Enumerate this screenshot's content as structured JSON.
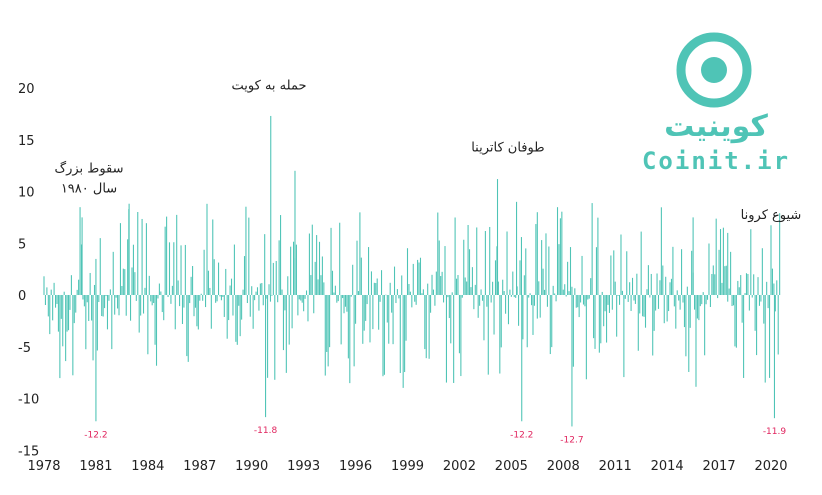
{
  "chart_data": {
    "type": "bar",
    "x_range": [
      1978,
      2020.5
    ],
    "ylim": [
      -15,
      22
    ],
    "x_ticks": [
      "1978",
      "1981",
      "1984",
      "1987",
      "1990",
      "1993",
      "1996",
      "1999",
      "2002",
      "2005",
      "2008",
      "2011",
      "2014",
      "2017",
      "2020"
    ],
    "y_ticks": [
      "20",
      "15",
      "10",
      "5",
      "0",
      "-5",
      "-10",
      "-15"
    ],
    "color": "#4fc4b6",
    "annotations": [
      {
        "lines": [
          "سقوط بزرگ",
          "سال ۱۹۸۰"
        ],
        "x": 1980.6,
        "y": 9.5
      },
      {
        "lines": [
          "حمله به کویت"
        ],
        "x": 1991.0,
        "y": 18.5
      },
      {
        "lines": [
          "طوفان کاترینا"
        ],
        "x": 2004.8,
        "y": 12.5
      },
      {
        "lines": [
          "شیوع کرونا"
        ],
        "x": 2020.0,
        "y": 6.0
      }
    ],
    "min_labels": [
      {
        "text": "-12.2",
        "x": 1981.0,
        "y": -12.2
      },
      {
        "text": "-11.8",
        "x": 1990.8,
        "y": -11.8
      },
      {
        "text": "-12.2",
        "x": 2005.6,
        "y": -12.2
      },
      {
        "text": "-12.7",
        "x": 2008.5,
        "y": -12.7
      },
      {
        "text": "-11.9",
        "x": 2020.2,
        "y": -11.9
      }
    ],
    "highlights": [
      {
        "x": 1980.2,
        "y": 7.5
      },
      {
        "x": 1981.0,
        "y": -12.2
      },
      {
        "x": 1982.9,
        "y": 8.3
      },
      {
        "x": 1990.8,
        "y": -11.8
      },
      {
        "x": 1991.1,
        "y": 17.3
      },
      {
        "x": 1992.5,
        "y": 12.0
      },
      {
        "x": 2004.2,
        "y": 11.2
      },
      {
        "x": 2005.6,
        "y": -12.2
      },
      {
        "x": 2005.3,
        "y": 9.0
      },
      {
        "x": 2008.5,
        "y": -12.7
      },
      {
        "x": 2006.5,
        "y": 8.0
      },
      {
        "x": 2015.5,
        "y": 7.5
      },
      {
        "x": 2020.2,
        "y": -11.9
      },
      {
        "x": 2017.5,
        "y": 6.0
      }
    ]
  },
  "logo": {
    "fa": "کوینیت",
    "en": "Coinit.ir"
  }
}
